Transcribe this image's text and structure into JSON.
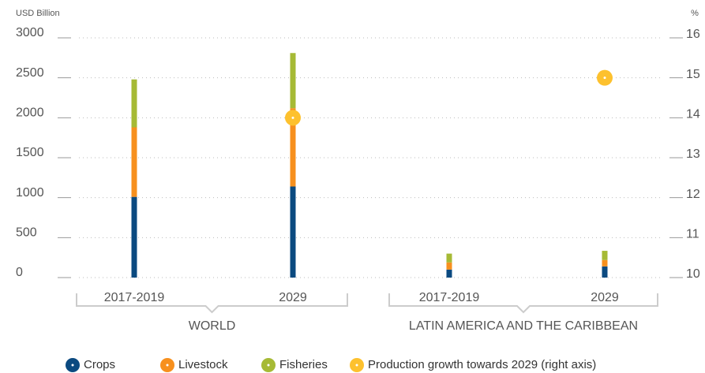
{
  "chart_data": {
    "type": "bar",
    "stacked": true,
    "y_label": "USD Billion",
    "y2_label": "%",
    "categories": [
      "2017-2019",
      "2029",
      "2017-2019",
      "2029"
    ],
    "groups": [
      "WORLD",
      "LATIN AMERICA AND THE CARIBBEAN"
    ],
    "series": [
      {
        "name": "Crops",
        "color": "#0b4a80",
        "values": [
          1010,
          1140,
          100,
          140
        ]
      },
      {
        "name": "Livestock",
        "color": "#f7901e",
        "values": [
          870,
          980,
          90,
          80
        ]
      },
      {
        "name": "Fisheries",
        "color": "#a6ba35",
        "values": [
          600,
          690,
          110,
          115
        ]
      },
      {
        "name": "Production growth towards 2029 (right axis)",
        "color": "#fdc12e",
        "type": "scatter",
        "axis": "y2",
        "values": [
          null,
          14.0,
          null,
          15.0
        ]
      }
    ],
    "ylim": [
      0,
      3000
    ],
    "yticks": [
      0,
      500,
      1000,
      1500,
      2000,
      2500,
      3000
    ],
    "y2lim": [
      10,
      16
    ],
    "y2ticks": [
      10,
      11,
      12,
      13,
      14,
      15,
      16
    ],
    "grid": true
  }
}
